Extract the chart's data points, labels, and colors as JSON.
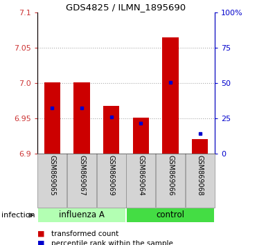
{
  "title": "GDS4825 / ILMN_1895690",
  "samples": [
    "GSM869065",
    "GSM869067",
    "GSM869069",
    "GSM869064",
    "GSM869066",
    "GSM869068"
  ],
  "group_colors": [
    "#b3ffb3",
    "#44dd44"
  ],
  "bar_bottom": 6.9,
  "red_tops": [
    7.001,
    7.001,
    6.968,
    6.951,
    7.065,
    6.921
  ],
  "blue_values": [
    6.965,
    6.965,
    6.952,
    6.943,
    7.001,
    6.928
  ],
  "ylim_left": [
    6.9,
    7.1
  ],
  "yticks_left": [
    6.9,
    6.95,
    7.0,
    7.05,
    7.1
  ],
  "yticks_right": [
    0,
    25,
    50,
    75,
    100
  ],
  "yticklabels_right": [
    "0",
    "25",
    "50",
    "75",
    "100%"
  ],
  "red_color": "#cc0000",
  "blue_color": "#0000cc",
  "bar_width": 0.55,
  "infection_label": "infection",
  "legend_red": "transformed count",
  "legend_blue": "percentile rank within the sample",
  "dotted_color": "#aaaaaa",
  "tick_label_color_left": "#cc3333",
  "tick_label_color_right": "#0000cc",
  "influenza_label": "influenza A",
  "control_label": "control"
}
